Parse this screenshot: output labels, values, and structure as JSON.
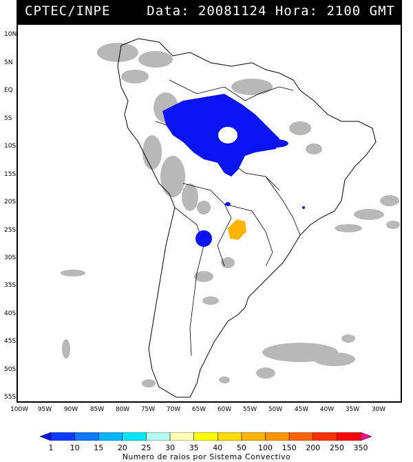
{
  "header": {
    "left_text": "CPTEC/INPE",
    "right_text": "Data: 20081124 Hora: 2100 GMT"
  },
  "map": {
    "lat_labels": [
      "10N",
      "5N",
      "EQ",
      "5S",
      "10S",
      "15S",
      "20S",
      "25S",
      "30S",
      "35S",
      "40S",
      "45S",
      "50S",
      "55S"
    ],
    "lon_labels": [
      "100W",
      "95W",
      "90W",
      "85W",
      "80W",
      "75W",
      "70W",
      "65W",
      "60W",
      "55W",
      "50W",
      "45W",
      "40W",
      "35W",
      "30W"
    ],
    "colors": {
      "land_outline": "#000000",
      "cloud_gray": "#b4b4b4",
      "convective_blue": "#0a14f0",
      "convective_orange": "#ffb400"
    }
  },
  "colorbar": {
    "labels": [
      "1",
      "10",
      "15",
      "20",
      "25",
      "30",
      "35",
      "40",
      "50",
      "100",
      "150",
      "200",
      "250",
      "350"
    ],
    "colors": [
      "#0014f0",
      "#0a3cff",
      "#0a78ff",
      "#00b4ff",
      "#00e6ff",
      "#b4fff0",
      "#ffffb4",
      "#ffff00",
      "#ffdc00",
      "#ffb400",
      "#ff9600",
      "#ff6400",
      "#ff3200",
      "#ff0000",
      "#ff0090"
    ],
    "title": "Numero de raios por Sistema Convectivo"
  }
}
